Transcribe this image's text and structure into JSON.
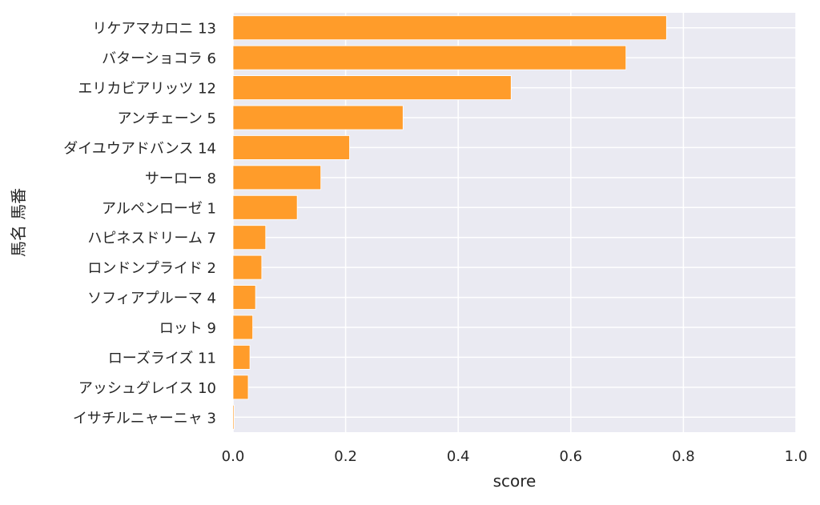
{
  "chart_data": {
    "type": "bar",
    "orientation": "horizontal",
    "categories": [
      "リケアマカロニ 13",
      "バターショコラ 6",
      "エリカビアリッツ 12",
      "アンチェーン 5",
      "ダイユウアドバンス 14",
      "サーロー 8",
      "アルペンローゼ 1",
      "ハピネスドリーム 7",
      "ロンドンプライド 2",
      "ソフィアプルーマ 4",
      "ロット 9",
      "ローズライズ 11",
      "アッシュグレイス 10",
      "イサチルニャーニャ 3"
    ],
    "values": [
      0.77,
      0.698,
      0.494,
      0.302,
      0.207,
      0.156,
      0.114,
      0.058,
      0.051,
      0.04,
      0.035,
      0.03,
      0.027,
      0.002
    ],
    "xlabel": "score",
    "ylabel": "馬名 馬番",
    "xlim": [
      0.0,
      1.0
    ],
    "xticks": [
      "0.0",
      "0.2",
      "0.4",
      "0.6",
      "0.8",
      "1.0"
    ],
    "grid": true,
    "colors": {
      "bar": "#ff9c2a",
      "background": "#eaeaf2",
      "grid": "#ffffff"
    }
  }
}
